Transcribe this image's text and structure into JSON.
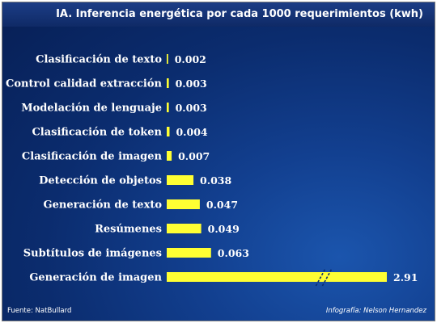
{
  "chart_data": {
    "type": "bar",
    "orientation": "horizontal",
    "title": "IA. Inferencia energética por cada 1000 requerimientos (kwh)",
    "categories": [
      "Clasificación de texto",
      "Control calidad extracción",
      "Modelación de lenguaje",
      "Clasificación de token",
      "Clasificación de imagen",
      "Detección de objetos",
      "Generación de texto",
      "Resúmenes",
      "Subtítulos de imágenes",
      "Generación de imagen"
    ],
    "values": [
      0.002,
      0.003,
      0.003,
      0.004,
      0.007,
      0.038,
      0.047,
      0.049,
      0.063,
      2.91
    ],
    "value_labels": [
      "0.002",
      "0.003",
      "0.003",
      "0.004",
      "0.007",
      "0.038",
      "0.047",
      "0.049",
      "0.063",
      "2.91"
    ],
    "broken_axis_bar": "Generación de imagen",
    "bar_color": "#ffff33",
    "grid": false,
    "legend": "none"
  },
  "footer": {
    "source": "Fuente: NatBullard",
    "credit": "Infografía: Nelson Hernandez"
  },
  "colors": {
    "background": "#0b2c6e",
    "bar": "#ffff33",
    "text": "#ffffff"
  }
}
